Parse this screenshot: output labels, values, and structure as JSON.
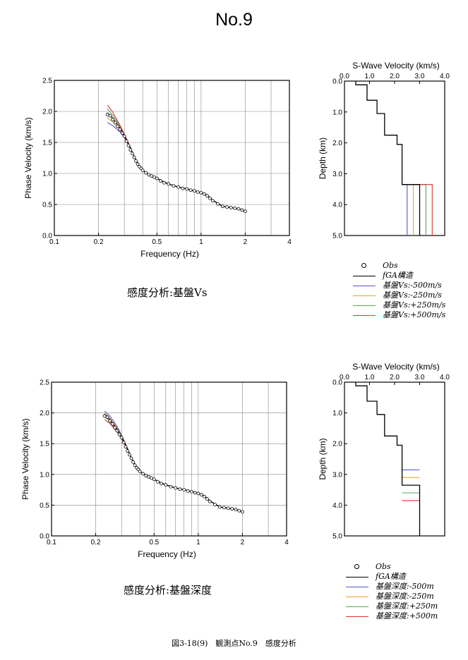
{
  "page": {
    "title": "No.9",
    "figure_caption": "図3-18(9)　観測点No.9　感度分析"
  },
  "colors": {
    "fga": "#000000",
    "m500": "#5555cc",
    "m250": "#f0a030",
    "p250": "#55aa55",
    "p500": "#dd3333"
  },
  "legends": {
    "top": [
      {
        "label": "Obs",
        "kind": "marker",
        "color": "#000000"
      },
      {
        "label": "fGA構造",
        "kind": "line",
        "color": "#000000"
      },
      {
        "label": "基盤Vs:-500m/s",
        "kind": "line",
        "color": "#5555cc"
      },
      {
        "label": "基盤Vs:-250m/s",
        "kind": "line",
        "color": "#f0a030"
      },
      {
        "label": "基盤Vs:+250m/s",
        "kind": "line",
        "color": "#55aa55"
      },
      {
        "label": "基盤Vs:+500m/s",
        "kind": "line",
        "color": "#dd3333"
      }
    ],
    "bottom": [
      {
        "label": "Obs",
        "kind": "marker",
        "color": "#000000"
      },
      {
        "label": "fGA構造",
        "kind": "line",
        "color": "#000000"
      },
      {
        "label": "基盤深度:-500m",
        "kind": "line",
        "color": "#5555cc"
      },
      {
        "label": "基盤深度:-250m",
        "kind": "line",
        "color": "#f0a030"
      },
      {
        "label": "基盤深度:+250m",
        "kind": "line",
        "color": "#55aa55"
      },
      {
        "label": "基盤深度:+500m",
        "kind": "line",
        "color": "#dd3333"
      }
    ]
  },
  "chart_data": [
    {
      "id": "disp_top",
      "type": "scatter",
      "caption": "感度分析:基盤Vs",
      "xlabel": "Frequency (Hz)",
      "ylabel": "Phase Velocity (km/s)",
      "xscale": "log",
      "xlim": [
        0.1,
        4
      ],
      "ylim": [
        0,
        2.5
      ],
      "xticks": [
        0.1,
        0.2,
        0.5,
        1,
        2,
        4
      ],
      "xtick_labels": [
        "0.1",
        "0.2",
        "0.5",
        "1",
        "2",
        "4"
      ],
      "yticks": [
        0,
        0.5,
        1.0,
        1.5,
        2.0,
        2.5
      ],
      "ytick_labels": [
        "0.0",
        "0.5",
        "1.0",
        "1.5",
        "2.0",
        "2.5"
      ],
      "grid": true,
      "obs": {
        "x": [
          0.23,
          0.24,
          0.25,
          0.26,
          0.27,
          0.28,
          0.29,
          0.3,
          0.31,
          0.32,
          0.33,
          0.34,
          0.35,
          0.36,
          0.37,
          0.38,
          0.39,
          0.4,
          0.42,
          0.44,
          0.46,
          0.48,
          0.5,
          0.53,
          0.56,
          0.6,
          0.65,
          0.7,
          0.75,
          0.8,
          0.85,
          0.9,
          0.95,
          1.0,
          1.05,
          1.1,
          1.15,
          1.2,
          1.3,
          1.4,
          1.5,
          1.6,
          1.7,
          1.8,
          1.9,
          2.0
        ],
        "y": [
          1.95,
          1.93,
          1.87,
          1.82,
          1.76,
          1.71,
          1.65,
          1.6,
          1.52,
          1.45,
          1.38,
          1.32,
          1.26,
          1.2,
          1.15,
          1.11,
          1.08,
          1.05,
          1.01,
          0.98,
          0.96,
          0.94,
          0.92,
          0.88,
          0.85,
          0.83,
          0.8,
          0.78,
          0.76,
          0.75,
          0.73,
          0.72,
          0.7,
          0.69,
          0.67,
          0.64,
          0.6,
          0.56,
          0.51,
          0.47,
          0.46,
          0.45,
          0.44,
          0.43,
          0.41,
          0.39
        ]
      },
      "series": [
        {
          "name": "fGA構造",
          "color": "#000000",
          "x": [
            0.23,
            0.25,
            0.28,
            0.3,
            0.33,
            0.35,
            0.38,
            0.4,
            0.45,
            0.5,
            0.55,
            0.6,
            0.7,
            0.8,
            0.9,
            1.0,
            1.1,
            1.2,
            1.4,
            1.6,
            1.8,
            2.0
          ],
          "y": [
            1.98,
            1.89,
            1.73,
            1.61,
            1.41,
            1.27,
            1.12,
            1.05,
            0.97,
            0.92,
            0.87,
            0.83,
            0.78,
            0.75,
            0.72,
            0.69,
            0.65,
            0.57,
            0.47,
            0.45,
            0.43,
            0.39
          ]
        },
        {
          "name": "基盤Vs:-500m/s",
          "color": "#5555cc",
          "x": [
            0.23,
            0.25,
            0.28,
            0.3,
            0.33,
            0.35,
            0.38,
            0.4,
            0.45,
            0.5,
            0.55,
            0.6,
            0.7,
            0.8,
            0.9,
            1.0,
            1.1,
            1.2,
            1.4,
            1.6,
            1.8,
            2.0
          ],
          "y": [
            1.82,
            1.77,
            1.67,
            1.58,
            1.4,
            1.27,
            1.12,
            1.05,
            0.97,
            0.92,
            0.87,
            0.83,
            0.78,
            0.75,
            0.72,
            0.69,
            0.65,
            0.57,
            0.47,
            0.45,
            0.43,
            0.39
          ]
        },
        {
          "name": "基盤Vs:-250m/s",
          "color": "#f0a030",
          "x": [
            0.23,
            0.25,
            0.28,
            0.3,
            0.33,
            0.35,
            0.38,
            0.4,
            0.45,
            0.5,
            0.55,
            0.6,
            0.7,
            0.8,
            0.9,
            1.0,
            1.1,
            1.2,
            1.4,
            1.6,
            1.8,
            2.0
          ],
          "y": [
            1.9,
            1.83,
            1.7,
            1.6,
            1.41,
            1.27,
            1.12,
            1.05,
            0.97,
            0.92,
            0.87,
            0.83,
            0.78,
            0.75,
            0.72,
            0.69,
            0.65,
            0.57,
            0.47,
            0.45,
            0.43,
            0.39
          ]
        },
        {
          "name": "基盤Vs:+250m/s",
          "color": "#55aa55",
          "x": [
            0.23,
            0.25,
            0.28,
            0.3,
            0.33,
            0.35,
            0.38,
            0.4,
            0.45,
            0.5,
            0.55,
            0.6,
            0.7,
            0.8,
            0.9,
            1.0,
            1.1,
            1.2,
            1.4,
            1.6,
            1.8,
            2.0
          ],
          "y": [
            2.04,
            1.94,
            1.76,
            1.62,
            1.41,
            1.27,
            1.12,
            1.05,
            0.97,
            0.92,
            0.87,
            0.83,
            0.78,
            0.75,
            0.72,
            0.69,
            0.65,
            0.57,
            0.47,
            0.45,
            0.43,
            0.39
          ]
        },
        {
          "name": "基盤Vs:+500m/s",
          "color": "#dd3333",
          "x": [
            0.23,
            0.25,
            0.28,
            0.3,
            0.33,
            0.35,
            0.38,
            0.4,
            0.45,
            0.5,
            0.55,
            0.6,
            0.7,
            0.8,
            0.9,
            1.0,
            1.1,
            1.2,
            1.4,
            1.6,
            1.8,
            2.0
          ],
          "y": [
            2.1,
            1.99,
            1.78,
            1.63,
            1.42,
            1.27,
            1.12,
            1.05,
            0.97,
            0.92,
            0.87,
            0.83,
            0.78,
            0.75,
            0.72,
            0.69,
            0.65,
            0.57,
            0.47,
            0.45,
            0.43,
            0.39
          ]
        }
      ]
    },
    {
      "id": "prof_top",
      "type": "line",
      "xlabel": "S-Wave Velocity (km/s)",
      "ylabel": "Depth (km)",
      "xlim": [
        0,
        4
      ],
      "ylim": [
        5,
        0
      ],
      "xticks": [
        0,
        1,
        2,
        3,
        4
      ],
      "xtick_labels": [
        "0.0",
        "1.0",
        "2.0",
        "3.0",
        "4.0"
      ],
      "yticks": [
        0,
        1,
        2,
        3,
        4,
        5
      ],
      "ytick_labels": [
        "0.0",
        "1.0",
        "2.0",
        "3.0",
        "4.0",
        "5.0"
      ],
      "grid": false,
      "series": [
        {
          "name": "fGA構造",
          "color": "#000000",
          "x": [
            0.45,
            0.45,
            0.9,
            0.9,
            1.3,
            1.3,
            1.6,
            1.6,
            2.1,
            2.1,
            2.3,
            2.3,
            3.0,
            3.0
          ],
          "y": [
            0,
            0.12,
            0.12,
            0.62,
            0.62,
            1.05,
            1.05,
            1.75,
            1.75,
            2.05,
            2.05,
            3.35,
            3.35,
            5
          ]
        },
        {
          "name": "基盤Vs:-500m/s",
          "color": "#5555cc",
          "x": [
            2.3,
            2.5,
            2.5
          ],
          "y": [
            3.35,
            3.35,
            5
          ]
        },
        {
          "name": "基盤Vs:-250m/s",
          "color": "#f0a030",
          "x": [
            2.3,
            2.75,
            2.75
          ],
          "y": [
            3.35,
            3.35,
            5
          ]
        },
        {
          "name": "基盤Vs:+250m/s",
          "color": "#55aa55",
          "x": [
            2.3,
            3.25,
            3.25
          ],
          "y": [
            3.35,
            3.35,
            5
          ]
        },
        {
          "name": "基盤Vs:+500m/s",
          "color": "#dd3333",
          "x": [
            2.3,
            3.5,
            3.5
          ],
          "y": [
            3.35,
            3.35,
            5
          ]
        }
      ]
    },
    {
      "id": "disp_bot",
      "type": "scatter",
      "caption": "感度分析:基盤深度",
      "xlabel": "Frequency (Hz)",
      "ylabel": "Phase Velocity (km/s)",
      "xscale": "log",
      "xlim": [
        0.1,
        4
      ],
      "ylim": [
        0,
        2.5
      ],
      "xticks": [
        0.1,
        0.2,
        0.5,
        1,
        2,
        4
      ],
      "xtick_labels": [
        "0.1",
        "0.2",
        "0.5",
        "1",
        "2",
        "4"
      ],
      "yticks": [
        0,
        0.5,
        1.0,
        1.5,
        2.0,
        2.5
      ],
      "ytick_labels": [
        "0.0",
        "0.5",
        "1.0",
        "1.5",
        "2.0",
        "2.5"
      ],
      "grid": true,
      "obs": {
        "x": [
          0.23,
          0.24,
          0.25,
          0.26,
          0.27,
          0.28,
          0.29,
          0.3,
          0.31,
          0.32,
          0.33,
          0.34,
          0.35,
          0.36,
          0.37,
          0.38,
          0.39,
          0.4,
          0.42,
          0.44,
          0.46,
          0.48,
          0.5,
          0.53,
          0.56,
          0.6,
          0.65,
          0.7,
          0.75,
          0.8,
          0.85,
          0.9,
          0.95,
          1.0,
          1.05,
          1.1,
          1.15,
          1.2,
          1.3,
          1.4,
          1.5,
          1.6,
          1.7,
          1.8,
          1.9,
          2.0
        ],
        "y": [
          1.95,
          1.93,
          1.87,
          1.82,
          1.76,
          1.71,
          1.65,
          1.6,
          1.52,
          1.45,
          1.38,
          1.32,
          1.26,
          1.2,
          1.15,
          1.11,
          1.08,
          1.05,
          1.01,
          0.98,
          0.96,
          0.94,
          0.92,
          0.88,
          0.85,
          0.83,
          0.8,
          0.78,
          0.76,
          0.75,
          0.73,
          0.72,
          0.7,
          0.69,
          0.67,
          0.64,
          0.6,
          0.56,
          0.51,
          0.47,
          0.46,
          0.45,
          0.44,
          0.43,
          0.41,
          0.39
        ]
      },
      "series": [
        {
          "name": "fGA構造",
          "color": "#000000",
          "x": [
            0.23,
            0.25,
            0.28,
            0.3,
            0.33,
            0.35,
            0.38,
            0.4,
            0.45,
            0.5,
            0.55,
            0.6,
            0.7,
            0.8,
            0.9,
            1.0,
            1.1,
            1.2,
            1.4,
            1.6,
            1.8,
            2.0
          ],
          "y": [
            1.98,
            1.89,
            1.73,
            1.61,
            1.41,
            1.27,
            1.12,
            1.05,
            0.97,
            0.92,
            0.87,
            0.83,
            0.78,
            0.75,
            0.72,
            0.69,
            0.65,
            0.57,
            0.47,
            0.45,
            0.43,
            0.39
          ]
        },
        {
          "name": "基盤深度:-500m",
          "color": "#5555cc",
          "x": [
            0.23,
            0.25,
            0.28,
            0.3,
            0.33,
            0.35,
            0.38,
            0.4,
            0.45,
            0.5,
            0.55,
            0.6,
            0.7,
            0.8,
            0.9,
            1.0,
            1.1,
            1.2,
            1.4,
            1.6,
            1.8,
            2.0
          ],
          "y": [
            2.03,
            1.95,
            1.78,
            1.64,
            1.42,
            1.27,
            1.12,
            1.05,
            0.97,
            0.92,
            0.87,
            0.83,
            0.78,
            0.75,
            0.72,
            0.69,
            0.65,
            0.57,
            0.47,
            0.45,
            0.43,
            0.39
          ]
        },
        {
          "name": "基盤深度:-250m",
          "color": "#f0a030",
          "x": [
            0.23,
            0.25,
            0.28,
            0.3,
            0.33,
            0.35,
            0.38,
            0.4,
            0.45,
            0.5,
            0.55,
            0.6,
            0.7,
            0.8,
            0.9,
            1.0,
            1.1,
            1.2,
            1.4,
            1.6,
            1.8,
            2.0
          ],
          "y": [
            2.0,
            1.92,
            1.75,
            1.62,
            1.41,
            1.27,
            1.12,
            1.05,
            0.97,
            0.92,
            0.87,
            0.83,
            0.78,
            0.75,
            0.72,
            0.69,
            0.65,
            0.57,
            0.47,
            0.45,
            0.43,
            0.39
          ]
        },
        {
          "name": "基盤深度:+250m",
          "color": "#55aa55",
          "x": [
            0.23,
            0.25,
            0.28,
            0.3,
            0.33,
            0.35,
            0.38,
            0.4,
            0.45,
            0.5,
            0.55,
            0.6,
            0.7,
            0.8,
            0.9,
            1.0,
            1.1,
            1.2,
            1.4,
            1.6,
            1.8,
            2.0
          ],
          "y": [
            1.94,
            1.86,
            1.71,
            1.6,
            1.4,
            1.27,
            1.12,
            1.05,
            0.97,
            0.92,
            0.87,
            0.83,
            0.78,
            0.75,
            0.72,
            0.69,
            0.65,
            0.57,
            0.47,
            0.45,
            0.43,
            0.39
          ]
        },
        {
          "name": "基盤深度:+500m",
          "color": "#dd3333",
          "x": [
            0.23,
            0.25,
            0.28,
            0.3,
            0.33,
            0.35,
            0.38,
            0.4,
            0.45,
            0.5,
            0.55,
            0.6,
            0.7,
            0.8,
            0.9,
            1.0,
            1.1,
            1.2,
            1.4,
            1.6,
            1.8,
            2.0
          ],
          "y": [
            1.89,
            1.83,
            1.69,
            1.58,
            1.4,
            1.27,
            1.12,
            1.05,
            0.97,
            0.92,
            0.87,
            0.83,
            0.78,
            0.75,
            0.72,
            0.69,
            0.65,
            0.57,
            0.47,
            0.45,
            0.43,
            0.39
          ]
        }
      ]
    },
    {
      "id": "prof_bot",
      "type": "line",
      "xlabel": "S-Wave Velocity (km/s)",
      "ylabel": "Depth (km)",
      "xlim": [
        0,
        4
      ],
      "ylim": [
        5,
        0
      ],
      "xticks": [
        0,
        1,
        2,
        3,
        4
      ],
      "xtick_labels": [
        "0.0",
        "1.0",
        "2.0",
        "3.0",
        "4.0"
      ],
      "yticks": [
        0,
        1,
        2,
        3,
        4,
        5
      ],
      "ytick_labels": [
        "0.0",
        "1.0",
        "2.0",
        "3.0",
        "4.0",
        "5.0"
      ],
      "grid": false,
      "series": [
        {
          "name": "fGA構造",
          "color": "#000000",
          "x": [
            0.45,
            0.45,
            0.9,
            0.9,
            1.3,
            1.3,
            1.6,
            1.6,
            2.1,
            2.1,
            2.3,
            2.3,
            3.0,
            3.0
          ],
          "y": [
            0,
            0.12,
            0.12,
            0.62,
            0.62,
            1.05,
            1.05,
            1.75,
            1.75,
            2.05,
            2.05,
            3.35,
            3.35,
            5
          ]
        },
        {
          "name": "基盤深度:-500m",
          "color": "#5555cc",
          "x": [
            2.3,
            3.0
          ],
          "y": [
            2.85,
            2.85
          ]
        },
        {
          "name": "基盤深度:-250m",
          "color": "#f0a030",
          "x": [
            2.3,
            3.0
          ],
          "y": [
            3.1,
            3.1
          ]
        },
        {
          "name": "基盤深度:+250m",
          "color": "#55aa55",
          "x": [
            2.3,
            3.0
          ],
          "y": [
            3.6,
            3.6
          ]
        },
        {
          "name": "基盤深度:+500m",
          "color": "#dd3333",
          "x": [
            2.3,
            3.0
          ],
          "y": [
            3.85,
            3.85
          ]
        }
      ]
    }
  ]
}
